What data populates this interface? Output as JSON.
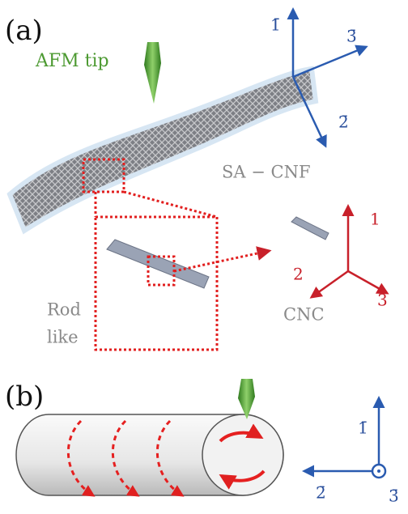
{
  "panel_a": {
    "label": "(a)",
    "tip_label": "AFM tip",
    "fiber_label": "SA − CNF",
    "rod_label": [
      "Rod",
      "like"
    ],
    "crystal_label": "CNC",
    "fiber_axes": [
      "1̄",
      "2̄",
      "3̄"
    ],
    "crystal_axes": [
      "1",
      "2",
      "3"
    ]
  },
  "panel_b": {
    "label": "(b)",
    "axes": [
      "1̄",
      "2̄",
      "3̄"
    ]
  }
}
